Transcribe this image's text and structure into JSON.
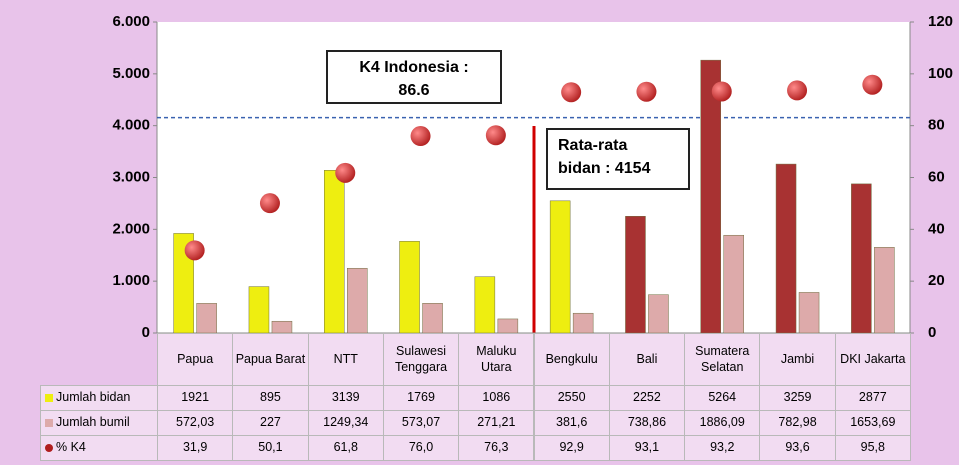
{
  "chart_data": {
    "type": "bar",
    "categories": [
      "Papua",
      "Papua Barat",
      "NTT",
      "Sulawesi Tenggara",
      "Maluku Utara",
      "Bengkulu",
      "Bali",
      "Sumatera Selatan",
      "Jambi",
      "DKI Jakarta"
    ],
    "series": [
      {
        "name": "Jumlah bidan",
        "color": "#eeee10",
        "colors": [
          "#eeee10",
          "#eeee10",
          "#eeee10",
          "#eeee10",
          "#eeee10",
          "#eeee10",
          "#a83232",
          "#a83232",
          "#a83232",
          "#a83232"
        ],
        "values": [
          1921,
          895,
          3139,
          1769,
          1086,
          2550,
          2252,
          5264,
          3259,
          2877
        ]
      },
      {
        "name": "Jumlah bumil",
        "color": "#ddaaaa",
        "values": [
          572.03,
          227,
          1249.34,
          573.07,
          271.21,
          381.6,
          738.86,
          1886.09,
          782.98,
          1653.69
        ],
        "value_labels": [
          "572,03",
          "227",
          "1249,34",
          "573,07",
          "271,21",
          "381,6",
          "738,86",
          "1886,09",
          "782,98",
          "1653,69"
        ]
      },
      {
        "name": "% K4",
        "color": "#b01e1e",
        "axis": "y2",
        "type": "scatter",
        "values": [
          31.9,
          50.1,
          61.8,
          76.0,
          76.3,
          92.9,
          93.1,
          93.2,
          93.6,
          95.8
        ],
        "value_labels": [
          "31,9",
          "50,1",
          "61,8",
          "76,0",
          "76,3",
          "92,9",
          "93,1",
          "93,2",
          "93,6",
          "95,8"
        ]
      }
    ],
    "ylim": [
      0,
      6000
    ],
    "yticks": [
      {
        "value": 0,
        "label": "0"
      },
      {
        "value": 1000,
        "label": "1.000"
      },
      {
        "value": 2000,
        "label": "2.000"
      },
      {
        "value": 3000,
        "label": "3.000"
      },
      {
        "value": 4000,
        "label": "4.000"
      },
      {
        "value": 5000,
        "label": "5.000"
      },
      {
        "value": 6000,
        "label": "6.000"
      }
    ],
    "y2lim": [
      0,
      120
    ],
    "y2ticks": [
      0,
      20,
      40,
      60,
      80,
      100,
      120
    ],
    "reference_line": {
      "value": 4154,
      "axis": "y"
    },
    "annotations": [
      {
        "lines": [
          "K4 Indonesia :",
          "86.6"
        ]
      },
      {
        "lines": [
          "Rata-rata",
          "bidan : 4154"
        ]
      }
    ]
  }
}
